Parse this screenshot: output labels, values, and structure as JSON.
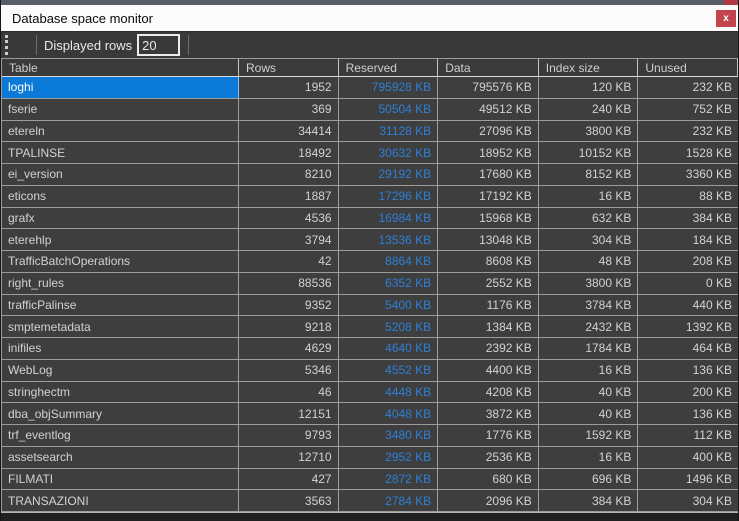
{
  "window": {
    "title": "Database space monitor",
    "close_label": "x"
  },
  "toolbar": {
    "displayed_rows_label": "Displayed rows",
    "displayed_rows_value": "20"
  },
  "table": {
    "columns": [
      "Table",
      "Rows",
      "Reserved",
      "Data",
      "Index size",
      "Unused"
    ],
    "rows": [
      {
        "table": "loghi",
        "rows": "1952",
        "reserved": "795928 KB",
        "data": "795576 KB",
        "index_size": "120 KB",
        "unused": "232 KB",
        "selected": true
      },
      {
        "table": "fserie",
        "rows": "369",
        "reserved": "50504 KB",
        "data": "49512 KB",
        "index_size": "240 KB",
        "unused": "752 KB",
        "selected": false
      },
      {
        "table": "etereln",
        "rows": "34414",
        "reserved": "31128 KB",
        "data": "27096 KB",
        "index_size": "3800 KB",
        "unused": "232 KB",
        "selected": false
      },
      {
        "table": "TPALINSE",
        "rows": "18492",
        "reserved": "30632 KB",
        "data": "18952 KB",
        "index_size": "10152 KB",
        "unused": "1528 KB",
        "selected": false
      },
      {
        "table": "ei_version",
        "rows": "8210",
        "reserved": "29192 KB",
        "data": "17680 KB",
        "index_size": "8152 KB",
        "unused": "3360 KB",
        "selected": false
      },
      {
        "table": "eticons",
        "rows": "1887",
        "reserved": "17296 KB",
        "data": "17192 KB",
        "index_size": "16 KB",
        "unused": "88 KB",
        "selected": false
      },
      {
        "table": "grafx",
        "rows": "4536",
        "reserved": "16984 KB",
        "data": "15968 KB",
        "index_size": "632 KB",
        "unused": "384 KB",
        "selected": false
      },
      {
        "table": "eterehlp",
        "rows": "3794",
        "reserved": "13536 KB",
        "data": "13048 KB",
        "index_size": "304 KB",
        "unused": "184 KB",
        "selected": false
      },
      {
        "table": "TrafficBatchOperations",
        "rows": "42",
        "reserved": "8864 KB",
        "data": "8608 KB",
        "index_size": "48 KB",
        "unused": "208 KB",
        "selected": false
      },
      {
        "table": "right_rules",
        "rows": "88536",
        "reserved": "6352 KB",
        "data": "2552 KB",
        "index_size": "3800 KB",
        "unused": "0 KB",
        "selected": false
      },
      {
        "table": "trafficPalinse",
        "rows": "9352",
        "reserved": "5400 KB",
        "data": "1176 KB",
        "index_size": "3784 KB",
        "unused": "440 KB",
        "selected": false
      },
      {
        "table": "smptemetadata",
        "rows": "9218",
        "reserved": "5208 KB",
        "data": "1384 KB",
        "index_size": "2432 KB",
        "unused": "1392 KB",
        "selected": false
      },
      {
        "table": "inifiles",
        "rows": "4629",
        "reserved": "4640 KB",
        "data": "2392 KB",
        "index_size": "1784 KB",
        "unused": "464 KB",
        "selected": false
      },
      {
        "table": "WebLog",
        "rows": "5346",
        "reserved": "4552 KB",
        "data": "4400 KB",
        "index_size": "16 KB",
        "unused": "136 KB",
        "selected": false
      },
      {
        "table": "stringhectm",
        "rows": "46",
        "reserved": "4448 KB",
        "data": "4208 KB",
        "index_size": "40 KB",
        "unused": "200 KB",
        "selected": false
      },
      {
        "table": "dba_objSummary",
        "rows": "12151",
        "reserved": "4048 KB",
        "data": "3872 KB",
        "index_size": "40 KB",
        "unused": "136 KB",
        "selected": false
      },
      {
        "table": "trf_eventlog",
        "rows": "9793",
        "reserved": "3480 KB",
        "data": "1776 KB",
        "index_size": "1592 KB",
        "unused": "112 KB",
        "selected": false
      },
      {
        "table": "assetsearch",
        "rows": "12710",
        "reserved": "2952 KB",
        "data": "2536 KB",
        "index_size": "16 KB",
        "unused": "400 KB",
        "selected": false
      },
      {
        "table": "FILMATI",
        "rows": "427",
        "reserved": "2872 KB",
        "data": "680 KB",
        "index_size": "696 KB",
        "unused": "1496 KB",
        "selected": false
      },
      {
        "table": "TRANSAZIONI",
        "rows": "3563",
        "reserved": "2784 KB",
        "data": "2096 KB",
        "index_size": "384 KB",
        "unused": "304 KB",
        "selected": false
      }
    ]
  },
  "colors": {
    "selection_blue": "#0a79d8",
    "reserved_link_blue": "#2e7fd6",
    "close_button_red": "#c2444c",
    "grid_background": "#3e3e3e",
    "grid_line": "#9c9c9c",
    "titlebar_background": "#fbfbfb"
  }
}
